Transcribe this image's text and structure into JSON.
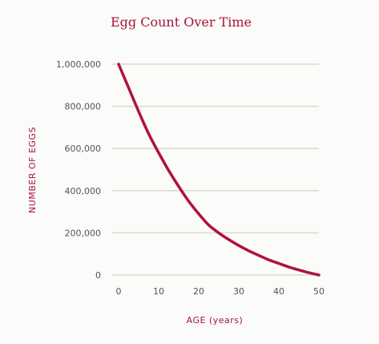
{
  "chart_data": {
    "type": "line",
    "title": "Egg Count Over Time",
    "xlabel": "AGE (years)",
    "ylabel": "NUMBER OF EGGS",
    "xlim": [
      0,
      50
    ],
    "ylim": [
      0,
      1000000
    ],
    "x_ticks": [
      0,
      10,
      20,
      30,
      40,
      50
    ],
    "y_ticks": [
      0,
      200000,
      400000,
      600000,
      800000,
      1000000
    ],
    "y_tick_labels": [
      "0",
      "200,000",
      "400,000",
      "600,000",
      "800,000",
      "1,000,000"
    ],
    "grid": "horizontal",
    "series": [
      {
        "x": [
          0,
          2.5,
          5,
          7.5,
          10,
          12.5,
          15,
          17.5,
          20,
          22.5,
          25,
          27.5,
          30,
          32.5,
          35,
          37.5,
          40,
          42.5,
          45,
          47.5,
          50
        ],
        "values": [
          1000000,
          888000,
          776000,
          670000,
          580000,
          496000,
          420000,
          350000,
          290000,
          237000,
          200000,
          168000,
          140000,
          115000,
          93000,
          72000,
          55000,
          38000,
          24000,
          11000,
          0
        ]
      }
    ],
    "colors": {
      "title": "#a8123e",
      "labels": "#a8123e",
      "line": "#b0123f",
      "grid": "#dcdad2",
      "tick": "#555555"
    }
  }
}
